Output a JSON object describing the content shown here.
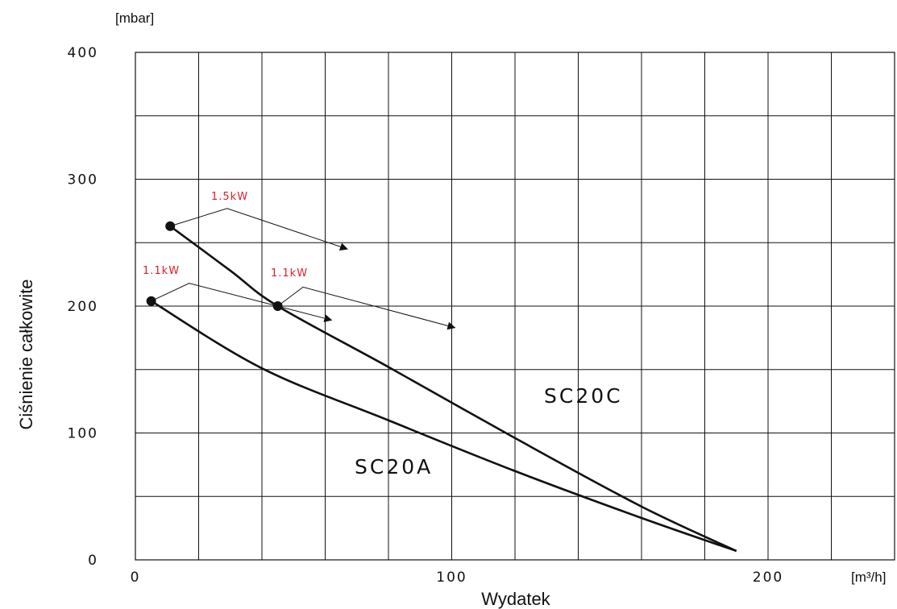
{
  "chart_data": {
    "type": "line",
    "xlabel": "Wydatek",
    "ylabel": "Ciśnienie całkowite",
    "x_unit": "[m³/h]",
    "y_unit": "[mbar]",
    "xlim": [
      0,
      240
    ],
    "ylim": [
      0,
      400
    ],
    "x_ticks": [
      0,
      100,
      200
    ],
    "y_ticks": [
      0,
      100,
      200,
      300,
      400
    ],
    "grid": true,
    "grid_x_step": 20,
    "grid_y_step": 50,
    "series": [
      {
        "name": "SC20C",
        "x": [
          11,
          30,
          45,
          80,
          120,
          160,
          190
        ],
        "y": [
          263,
          228,
          200,
          152,
          96,
          42,
          7
        ]
      },
      {
        "name": "SC20A",
        "x": [
          5,
          40,
          80,
          120,
          160,
          190
        ],
        "y": [
          204,
          151,
          110,
          70,
          33,
          7
        ]
      }
    ],
    "markers": [
      {
        "x": 11,
        "y": 263
      },
      {
        "x": 45,
        "y": 200
      },
      {
        "x": 5,
        "y": 204
      }
    ],
    "annotations": [
      {
        "text": "1.5kW",
        "color": "#e0202a"
      },
      {
        "text": "1.1kW",
        "color": "#e0202a"
      },
      {
        "text": "1.1kW",
        "color": "#e0202a"
      }
    ]
  }
}
